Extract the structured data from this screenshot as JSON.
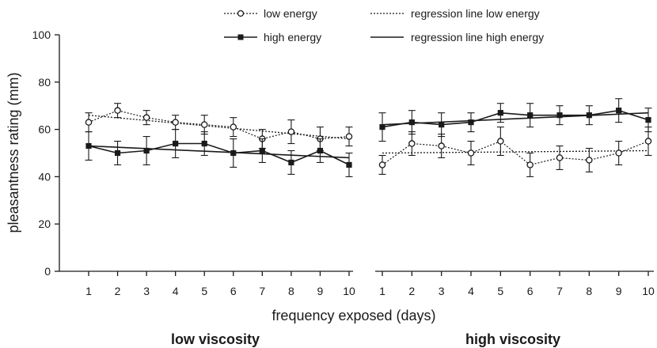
{
  "chart_data": {
    "type": "line",
    "xlabel": "frequency exposed (days)",
    "ylabel": "pleasantness rating (mm)",
    "ylim": [
      0,
      100
    ],
    "yticks": [
      0,
      20,
      40,
      60,
      80,
      100
    ],
    "x": [
      1,
      2,
      3,
      4,
      5,
      6,
      7,
      8,
      9,
      10
    ],
    "legend": {
      "placement": "top",
      "entries": [
        {
          "key": "low",
          "label": "low  energy",
          "style": "dotted-open-circle"
        },
        {
          "key": "high",
          "label": "high energy",
          "style": "solid-filled-square"
        },
        {
          "key": "reg_low",
          "label": "regression line low  energy",
          "style": "dotted-line"
        },
        {
          "key": "reg_high",
          "label": "regression line high energy",
          "style": "solid-line"
        }
      ]
    },
    "panels": [
      {
        "title": "low viscosity",
        "series": [
          {
            "name": "low  energy",
            "values": [
              63,
              68,
              65,
              63,
              62,
              61,
              56,
              59,
              56,
              57
            ],
            "errors": [
              4,
              3,
              3,
              3,
              4,
              4,
              4,
              5,
              5,
              4
            ]
          },
          {
            "name": "high energy",
            "values": [
              53,
              50,
              51,
              54,
              54,
              50,
              51,
              46,
              51,
              45
            ],
            "errors": [
              6,
              5,
              6,
              6,
              5,
              6,
              5,
              5,
              5,
              5
            ]
          }
        ],
        "regressions": [
          {
            "name": "regression line low  energy",
            "y_at_first": 66,
            "y_at_last": 56
          },
          {
            "name": "regression line high energy",
            "y_at_first": 53,
            "y_at_last": 48
          }
        ]
      },
      {
        "title": "high viscosity",
        "series": [
          {
            "name": "low  energy",
            "values": [
              45,
              54,
              53,
              50,
              55,
              45,
              48,
              47,
              50,
              55
            ],
            "errors": [
              4,
              5,
              5,
              5,
              6,
              5,
              5,
              5,
              5,
              6
            ]
          },
          {
            "name": "high energy",
            "values": [
              61,
              63,
              62,
              63,
              67,
              66,
              66,
              66,
              68,
              64
            ],
            "errors": [
              6,
              5,
              5,
              4,
              4,
              5,
              4,
              4,
              5,
              5
            ]
          }
        ],
        "regressions": [
          {
            "name": "regression line low  energy",
            "y_at_first": 50,
            "y_at_last": 51
          },
          {
            "name": "regression line high energy",
            "y_at_first": 62,
            "y_at_last": 67
          }
        ]
      }
    ]
  }
}
